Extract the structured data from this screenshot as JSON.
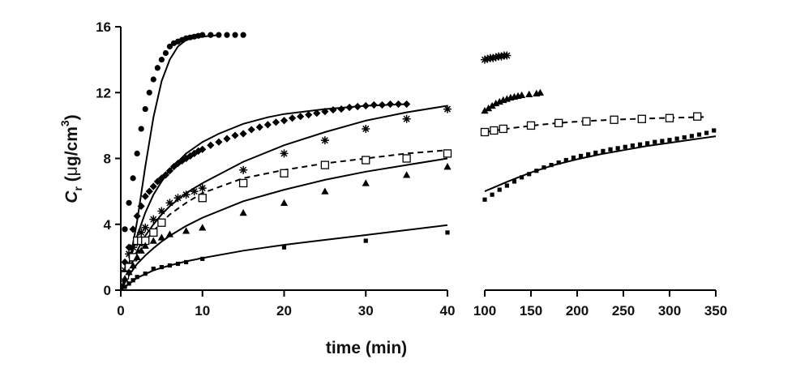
{
  "chart_data": {
    "type": "scatter",
    "title": "",
    "xlabel": "time (min)",
    "ylabel": {
      "main": "C",
      "sub": "r",
      "unit_prefix": " (",
      "mu": "μ",
      "unit_mid": "g/cm",
      "sup": "3",
      "unit_suffix": ")"
    },
    "ylim": [
      0,
      16
    ],
    "y_ticks": [
      0,
      4,
      8,
      12,
      16
    ],
    "panels": [
      {
        "name": "left",
        "xlim": [
          0,
          40
        ],
        "x_ticks": [
          0,
          10,
          20,
          30,
          40
        ]
      },
      {
        "name": "right",
        "xlim": [
          100,
          350
        ],
        "x_ticks": [
          100,
          150,
          200,
          250,
          300,
          350
        ]
      }
    ],
    "series": [
      {
        "name": "circles",
        "marker": "circle",
        "points": [
          [
            0.5,
            3.7
          ],
          [
            1,
            5.3
          ],
          [
            1.5,
            6.8
          ],
          [
            2,
            8.3
          ],
          [
            2.5,
            9.8
          ],
          [
            3,
            11.0
          ],
          [
            3.5,
            12.0
          ],
          [
            4,
            12.8
          ],
          [
            4.5,
            13.5
          ],
          [
            5,
            14.0
          ],
          [
            5.5,
            14.4
          ],
          [
            6,
            14.8
          ],
          [
            6.5,
            15.0
          ],
          [
            7,
            15.1
          ],
          [
            7.5,
            15.2
          ],
          [
            8,
            15.3
          ],
          [
            8.5,
            15.35
          ],
          [
            9,
            15.4
          ],
          [
            9.5,
            15.45
          ],
          [
            10,
            15.5
          ],
          [
            11,
            15.5
          ],
          [
            12,
            15.5
          ],
          [
            13,
            15.5
          ],
          [
            14,
            15.5
          ],
          [
            15,
            15.5
          ]
        ],
        "fit_left": [
          [
            0,
            0
          ],
          [
            1,
            1.5
          ],
          [
            2,
            4.2
          ],
          [
            3,
            7.5
          ],
          [
            4,
            10.5
          ],
          [
            5,
            12.7
          ],
          [
            6,
            14.0
          ],
          [
            7,
            14.8
          ],
          [
            8,
            15.2
          ],
          [
            9,
            15.35
          ],
          [
            10,
            15.4
          ],
          [
            11,
            15.45
          ],
          [
            12,
            15.5
          ]
        ],
        "fit_style": "solid"
      },
      {
        "name": "diamonds",
        "marker": "diamond",
        "points": [
          [
            0.5,
            1.7
          ],
          [
            1,
            2.6
          ],
          [
            1.5,
            3.7
          ],
          [
            2,
            4.5
          ],
          [
            2.5,
            5.1
          ],
          [
            3,
            5.7
          ],
          [
            3.5,
            6.0
          ],
          [
            4,
            6.3
          ],
          [
            4.5,
            6.6
          ],
          [
            5,
            6.8
          ],
          [
            5.5,
            7.0
          ],
          [
            6,
            7.25
          ],
          [
            6.5,
            7.5
          ],
          [
            7,
            7.7
          ],
          [
            7.5,
            7.85
          ],
          [
            8,
            8.0
          ],
          [
            8.5,
            8.15
          ],
          [
            9,
            8.3
          ],
          [
            9.5,
            8.45
          ],
          [
            10,
            8.55
          ],
          [
            11,
            8.8
          ],
          [
            12,
            9.0
          ],
          [
            13,
            9.2
          ],
          [
            14,
            9.4
          ],
          [
            15,
            9.5
          ],
          [
            16,
            9.75
          ],
          [
            17,
            9.9
          ],
          [
            18,
            10.05
          ],
          [
            19,
            10.2
          ],
          [
            20,
            10.3
          ],
          [
            21,
            10.45
          ],
          [
            22,
            10.55
          ],
          [
            23,
            10.65
          ],
          [
            24,
            10.75
          ],
          [
            25,
            10.85
          ],
          [
            26,
            10.95
          ],
          [
            27,
            11.0
          ],
          [
            28,
            11.1
          ],
          [
            29,
            11.15
          ],
          [
            30,
            11.2
          ],
          [
            31,
            11.25
          ],
          [
            32,
            11.25
          ],
          [
            33,
            11.3
          ],
          [
            34,
            11.3
          ],
          [
            35,
            11.3
          ]
        ],
        "fit_left": [
          [
            0,
            0
          ],
          [
            1,
            1.6
          ],
          [
            2,
            3.3
          ],
          [
            3,
            4.7
          ],
          [
            4,
            5.8
          ],
          [
            5,
            6.6
          ],
          [
            6,
            7.3
          ],
          [
            8,
            8.3
          ],
          [
            10,
            9.0
          ],
          [
            12,
            9.5
          ],
          [
            15,
            10.1
          ],
          [
            18,
            10.5
          ],
          [
            20,
            10.7
          ],
          [
            25,
            11.0
          ],
          [
            30,
            11.2
          ],
          [
            35,
            11.3
          ]
        ],
        "fit_style": "solid"
      },
      {
        "name": "stars",
        "marker": "asterisk",
        "points": [
          [
            0.5,
            1.2
          ],
          [
            1,
            2.2
          ],
          [
            1.5,
            2.6
          ],
          [
            2,
            2.9
          ],
          [
            2.5,
            3.5
          ],
          [
            3,
            3.8
          ],
          [
            4,
            4.3
          ],
          [
            5,
            4.8
          ],
          [
            6,
            5.3
          ],
          [
            7,
            5.6
          ],
          [
            8,
            5.8
          ],
          [
            9,
            6.0
          ],
          [
            10,
            6.2
          ],
          [
            15,
            7.3
          ],
          [
            20,
            8.3
          ],
          [
            25,
            9.1
          ],
          [
            30,
            9.8
          ],
          [
            35,
            10.4
          ],
          [
            40,
            11.0
          ]
        ],
        "points_right": [
          [
            100,
            14.0
          ],
          [
            103,
            14.05
          ],
          [
            106,
            14.1
          ],
          [
            109,
            14.1
          ],
          [
            112,
            14.15
          ],
          [
            115,
            14.2
          ],
          [
            118,
            14.2
          ],
          [
            121,
            14.25
          ],
          [
            124,
            14.25
          ]
        ],
        "fit_left": [
          [
            0,
            0
          ],
          [
            1,
            1.3
          ],
          [
            2,
            2.4
          ],
          [
            3,
            3.3
          ],
          [
            4,
            4.0
          ],
          [
            5,
            4.6
          ],
          [
            6,
            5.1
          ],
          [
            8,
            5.9
          ],
          [
            10,
            6.5
          ],
          [
            15,
            7.8
          ],
          [
            20,
            8.8
          ],
          [
            25,
            9.6
          ],
          [
            30,
            10.3
          ],
          [
            35,
            10.8
          ],
          [
            40,
            11.2
          ]
        ],
        "fit_style": "solid"
      },
      {
        "name": "open squares",
        "marker": "open-square",
        "points": [
          [
            0.5,
            0.9
          ],
          [
            1,
            1.4
          ],
          [
            1.5,
            2.0
          ],
          [
            2,
            3.0
          ],
          [
            2.5,
            3.0
          ],
          [
            3,
            3.0
          ],
          [
            4,
            3.5
          ],
          [
            5,
            4.1
          ],
          [
            10,
            5.6
          ],
          [
            15,
            6.5
          ],
          [
            20,
            7.1
          ],
          [
            25,
            7.6
          ],
          [
            30,
            7.9
          ],
          [
            35,
            8.0
          ],
          [
            40,
            8.3
          ]
        ],
        "points_right": [
          [
            100,
            9.6
          ],
          [
            110,
            9.7
          ],
          [
            120,
            9.8
          ],
          [
            150,
            10.0
          ],
          [
            180,
            10.15
          ],
          [
            210,
            10.25
          ],
          [
            240,
            10.35
          ],
          [
            270,
            10.4
          ],
          [
            300,
            10.45
          ],
          [
            330,
            10.55
          ]
        ],
        "fit_left": [
          [
            0,
            0
          ],
          [
            1,
            1.3
          ],
          [
            2,
            2.3
          ],
          [
            3,
            3.0
          ],
          [
            4,
            3.6
          ],
          [
            5,
            4.1
          ],
          [
            6,
            4.6
          ],
          [
            8,
            5.3
          ],
          [
            10,
            5.9
          ],
          [
            15,
            6.8
          ],
          [
            20,
            7.3
          ],
          [
            25,
            7.7
          ],
          [
            30,
            8.0
          ],
          [
            35,
            8.3
          ],
          [
            40,
            8.5
          ]
        ],
        "fit_right": [
          [
            100,
            9.6
          ],
          [
            130,
            9.85
          ],
          [
            160,
            10.05
          ],
          [
            190,
            10.2
          ],
          [
            220,
            10.3
          ],
          [
            250,
            10.38
          ],
          [
            280,
            10.43
          ],
          [
            310,
            10.48
          ],
          [
            340,
            10.52
          ]
        ],
        "fit_style": "dashed"
      },
      {
        "name": "triangles",
        "marker": "triangle",
        "points": [
          [
            0.5,
            0.7
          ],
          [
            1,
            1.1
          ],
          [
            1.5,
            1.5
          ],
          [
            2,
            2.0
          ],
          [
            2.5,
            2.4
          ],
          [
            3,
            2.7
          ],
          [
            4,
            3.0
          ],
          [
            5,
            3.2
          ],
          [
            6,
            3.4
          ],
          [
            8,
            3.6
          ],
          [
            10,
            3.8
          ],
          [
            15,
            4.7
          ],
          [
            20,
            5.3
          ],
          [
            25,
            6.0
          ],
          [
            30,
            6.5
          ],
          [
            35,
            7.0
          ],
          [
            40,
            7.5
          ]
        ],
        "points_right": [
          [
            100,
            10.9
          ],
          [
            104,
            11.05
          ],
          [
            108,
            11.2
          ],
          [
            112,
            11.35
          ],
          [
            116,
            11.45
          ],
          [
            120,
            11.55
          ],
          [
            124,
            11.62
          ],
          [
            128,
            11.7
          ],
          [
            132,
            11.75
          ],
          [
            136,
            11.8
          ],
          [
            140,
            11.85
          ],
          [
            148,
            11.9
          ],
          [
            156,
            11.95
          ],
          [
            160,
            12.0
          ]
        ],
        "fit_left": [
          [
            0,
            0
          ],
          [
            1,
            0.9
          ],
          [
            2,
            1.6
          ],
          [
            3,
            2.1
          ],
          [
            4,
            2.55
          ],
          [
            5,
            2.95
          ],
          [
            6,
            3.3
          ],
          [
            8,
            3.9
          ],
          [
            10,
            4.4
          ],
          [
            15,
            5.4
          ],
          [
            20,
            6.1
          ],
          [
            25,
            6.7
          ],
          [
            30,
            7.2
          ],
          [
            35,
            7.6
          ],
          [
            40,
            8.0
          ]
        ],
        "fit_style": "solid"
      },
      {
        "name": "small squares",
        "marker": "filled-square",
        "points": [
          [
            0.5,
            0.2
          ],
          [
            1,
            0.4
          ],
          [
            1.5,
            0.6
          ],
          [
            2,
            0.8
          ],
          [
            3,
            1.0
          ],
          [
            4,
            1.3
          ],
          [
            5,
            1.4
          ],
          [
            6,
            1.5
          ],
          [
            7,
            1.6
          ],
          [
            8,
            1.7
          ],
          [
            10,
            1.9
          ],
          [
            20,
            2.6
          ],
          [
            30,
            3.0
          ],
          [
            40,
            3.5
          ]
        ],
        "points_right": [
          [
            100,
            5.5
          ],
          [
            108,
            5.8
          ],
          [
            116,
            6.1
          ],
          [
            124,
            6.35
          ],
          [
            132,
            6.6
          ],
          [
            140,
            6.85
          ],
          [
            148,
            7.05
          ],
          [
            156,
            7.25
          ],
          [
            164,
            7.45
          ],
          [
            172,
            7.6
          ],
          [
            180,
            7.75
          ],
          [
            188,
            7.9
          ],
          [
            196,
            8.05
          ],
          [
            204,
            8.15
          ],
          [
            212,
            8.25
          ],
          [
            220,
            8.35
          ],
          [
            228,
            8.45
          ],
          [
            236,
            8.55
          ],
          [
            244,
            8.62
          ],
          [
            252,
            8.7
          ],
          [
            260,
            8.78
          ],
          [
            268,
            8.85
          ],
          [
            276,
            8.92
          ],
          [
            284,
            9.0
          ],
          [
            292,
            9.06
          ],
          [
            300,
            9.12
          ],
          [
            308,
            9.2
          ],
          [
            316,
            9.28
          ],
          [
            324,
            9.36
          ],
          [
            332,
            9.45
          ],
          [
            340,
            9.55
          ],
          [
            348,
            9.7
          ]
        ],
        "fit_left": [
          [
            0,
            0
          ],
          [
            2,
            0.75
          ],
          [
            4,
            1.2
          ],
          [
            6,
            1.5
          ],
          [
            8,
            1.75
          ],
          [
            10,
            1.95
          ],
          [
            15,
            2.4
          ],
          [
            20,
            2.75
          ],
          [
            25,
            3.05
          ],
          [
            30,
            3.35
          ],
          [
            35,
            3.65
          ],
          [
            40,
            3.95
          ]
        ],
        "fit_right": [
          [
            100,
            6.0
          ],
          [
            125,
            6.6
          ],
          [
            150,
            7.15
          ],
          [
            175,
            7.6
          ],
          [
            200,
            7.95
          ],
          [
            225,
            8.25
          ],
          [
            250,
            8.5
          ],
          [
            275,
            8.75
          ],
          [
            300,
            8.95
          ],
          [
            325,
            9.15
          ],
          [
            350,
            9.35
          ]
        ],
        "fit_style": "solid"
      }
    ]
  }
}
